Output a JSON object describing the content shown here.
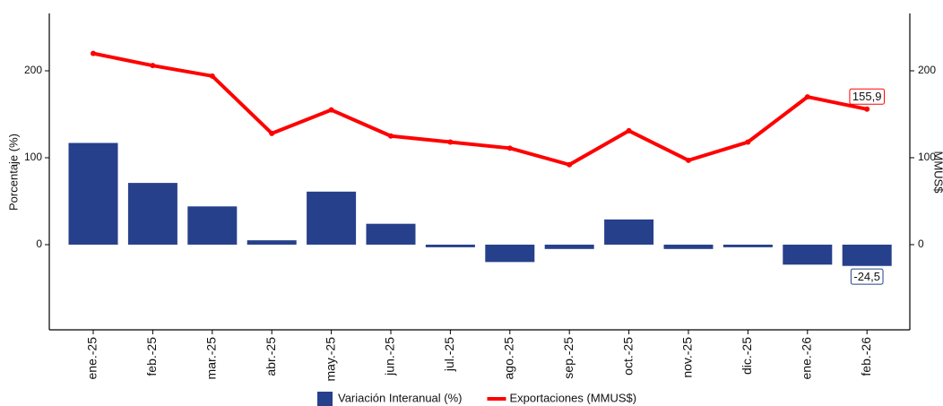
{
  "chart_data": {
    "type": "bar-line",
    "categories": [
      "ene.-25",
      "feb.-25",
      "mar.-25",
      "abr.-25",
      "may.-25",
      "jun.-25",
      "jul.-25",
      "ago.-25",
      "sep.-25",
      "oct.-25",
      "nov.-25",
      "dic.-25",
      "ene.-26",
      "feb.-26"
    ],
    "series": [
      {
        "name": "Variación Interanual (%)",
        "type": "bar",
        "color": "#26408b",
        "values": [
          117,
          71,
          44,
          5,
          61,
          24,
          -3,
          -20,
          -5,
          29,
          -5,
          -3,
          -23,
          -24.5
        ],
        "value_labels": [
          null,
          null,
          null,
          null,
          null,
          null,
          null,
          null,
          null,
          null,
          null,
          null,
          null,
          "-24,5"
        ]
      },
      {
        "name": "Exportaciones (MMUS$)",
        "type": "line",
        "axis": "y2",
        "color": "#ff0000",
        "values": [
          220,
          206,
          194,
          128,
          155,
          125,
          118,
          111,
          92,
          131,
          97,
          118,
          170,
          155.9
        ],
        "value_labels": [
          null,
          null,
          null,
          null,
          null,
          null,
          null,
          null,
          null,
          null,
          null,
          null,
          null,
          "155,9"
        ]
      }
    ],
    "ylabel": "Porcentaje (%)",
    "y2label": "MMUS$",
    "ylim": [
      -98,
      266
    ],
    "yticks": [
      0,
      100,
      200
    ],
    "y2lim": [
      -98,
      266
    ],
    "y2ticks": [
      0,
      100,
      200
    ],
    "legend": "bottom",
    "grid": false
  }
}
